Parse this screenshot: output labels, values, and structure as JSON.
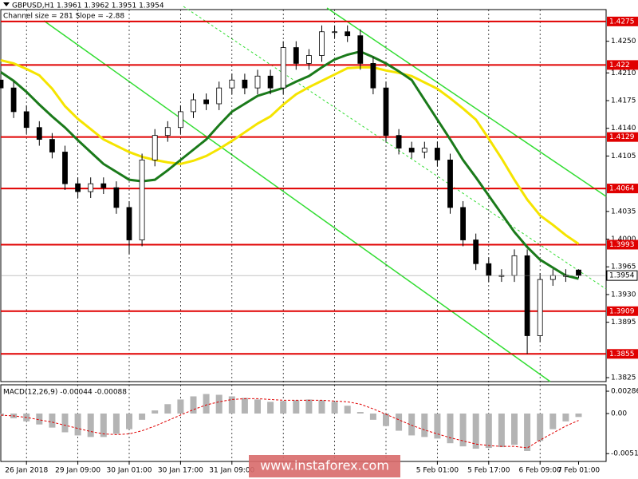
{
  "chart_data": [
    {
      "type": "candlestick",
      "title": "GBPUSD,H1  1.3961 1.3962 1.3951 1.3954",
      "subtitle": "Channel size = 281 Slope = -2.88",
      "watermark": "www.instaforex.com",
      "categories": [
        null,
        null,
        "26 Jan 2018",
        null,
        null,
        null,
        "29 Jan 09:00",
        null,
        null,
        null,
        "30 Jan 01:00",
        null,
        null,
        null,
        "30 Jan 17:00",
        null,
        null,
        null,
        "31 Jan 09:00",
        null,
        null,
        null,
        null,
        null,
        null,
        null,
        null,
        null,
        null,
        null,
        null,
        null,
        null,
        null,
        "5 Feb 01:00",
        null,
        null,
        null,
        "5 Feb 17:00",
        null,
        null,
        null,
        "6 Feb 09:00",
        null,
        null,
        "7 Feb 01:00"
      ],
      "open": [
        1.4201,
        1.4191,
        1.4161,
        1.4141,
        1.4126,
        1.411,
        1.407,
        1.406,
        1.407,
        1.4065,
        1.404,
        1.3999,
        1.41,
        1.4131,
        1.4141,
        1.4161,
        1.4176,
        1.4171,
        1.4191,
        1.4201,
        1.4191,
        1.4206,
        1.4191,
        1.4242,
        1.4222,
        1.4232,
        1.4262,
        1.4262,
        1.4257,
        1.4222,
        1.4191,
        1.4131,
        1.4115,
        1.411,
        1.4115,
        1.41,
        1.404,
        1.3999,
        1.3969,
        1.3954,
        1.3954,
        1.3979,
        1.3878,
        1.3949,
        1.3954,
        1.3961
      ],
      "high": [
        1.4209,
        1.4199,
        1.4169,
        1.4149,
        1.4134,
        1.4118,
        1.4078,
        1.4078,
        1.4078,
        1.4073,
        1.4048,
        1.4108,
        1.4139,
        1.4149,
        1.4169,
        1.4184,
        1.4184,
        1.4199,
        1.4209,
        1.4209,
        1.4214,
        1.4214,
        1.425,
        1.425,
        1.424,
        1.427,
        1.427,
        1.427,
        1.4265,
        1.423,
        1.4199,
        1.4139,
        1.4123,
        1.4123,
        1.4123,
        1.4108,
        1.4048,
        1.4007,
        1.3977,
        1.3962,
        1.3987,
        1.3987,
        1.3957,
        1.3962,
        1.3962,
        1.3962
      ],
      "low": [
        1.4183,
        1.4153,
        1.4133,
        1.4118,
        1.4102,
        1.4062,
        1.4052,
        1.4052,
        1.4057,
        1.4032,
        1.3981,
        1.3991,
        1.4092,
        1.4123,
        1.4133,
        1.4153,
        1.4163,
        1.4163,
        1.4183,
        1.4183,
        1.4183,
        1.4183,
        1.4183,
        1.4214,
        1.4214,
        1.4224,
        1.4254,
        1.4249,
        1.4214,
        1.4183,
        1.4123,
        1.4107,
        1.4102,
        1.4102,
        1.4092,
        1.4032,
        1.3991,
        1.3961,
        1.3946,
        1.3946,
        1.3946,
        1.3855,
        1.387,
        1.3941,
        1.3946,
        1.3951
      ],
      "close": [
        1.4191,
        1.4161,
        1.4141,
        1.4126,
        1.411,
        1.407,
        1.406,
        1.407,
        1.4065,
        1.404,
        1.3999,
        1.41,
        1.4131,
        1.4141,
        1.4161,
        1.4176,
        1.4171,
        1.4191,
        1.4201,
        1.4191,
        1.4206,
        1.4191,
        1.4242,
        1.4222,
        1.4232,
        1.4262,
        1.4262,
        1.4257,
        1.4222,
        1.4191,
        1.4131,
        1.4115,
        1.411,
        1.4115,
        1.41,
        1.404,
        1.3999,
        1.3969,
        1.3954,
        1.3954,
        1.3979,
        1.3878,
        1.3949,
        1.3954,
        1.3954,
        1.3954
      ],
      "color": "#000000",
      "series": [
        {
          "color": "#f5e400",
          "values": [
            1.4226,
            1.4222,
            1.4215,
            1.4207,
            1.419,
            1.4168,
            1.4152,
            1.4139,
            1.4126,
            1.4118,
            1.411,
            1.4104,
            1.41,
            1.4097,
            1.4095,
            1.4099,
            1.4105,
            1.4114,
            1.4124,
            1.4135,
            1.4146,
            1.4155,
            1.417,
            1.4183,
            1.4192,
            1.42,
            1.4208,
            1.4216,
            1.4217,
            1.4217,
            1.4213,
            1.421,
            1.4206,
            1.4198,
            1.419,
            1.4178,
            1.4165,
            1.4151,
            1.4127,
            1.4102,
            1.4075,
            1.405,
            1.403,
            1.4018,
            1.4005,
            1.3994
          ]
        },
        {
          "color": "#1a7a1a",
          "values": [
            1.4211,
            1.42,
            1.4186,
            1.417,
            1.4155,
            1.4141,
            1.4125,
            1.411,
            1.4095,
            1.4085,
            1.4075,
            1.4073,
            1.4075,
            1.4087,
            1.41,
            1.4113,
            1.4126,
            1.4144,
            1.4161,
            1.4171,
            1.4181,
            1.4186,
            1.4191,
            1.4199,
            1.4206,
            1.4217,
            1.4227,
            1.4233,
            1.4237,
            1.423,
            1.4222,
            1.4212,
            1.4201,
            1.4176,
            1.4151,
            1.4126,
            1.41,
            1.4078,
            1.4055,
            1.4032,
            1.4009,
            1.399,
            1.3974,
            1.3964,
            1.3954,
            1.395
          ]
        }
      ],
      "levels": [
        1.4275,
        1.422,
        1.4129,
        1.4064,
        1.3993,
        1.3909,
        1.3855
      ],
      "level_color": "#e00000",
      "current_price": 1.3954,
      "ylim": [
        1.382,
        1.429
      ],
      "yticks": [
        {
          "value": 1.425,
          "label": "1.4250"
        },
        {
          "value": 1.421,
          "label": "1.4210"
        },
        1.4175,
        {
          "value": 1.414,
          "label": "1.4140"
        },
        1.4105,
        1.4035,
        {
          "value": 1.4,
          "label": "1.4000"
        },
        1.3965,
        {
          "value": 1.393,
          "label": "1.3930"
        },
        1.3895,
        1.3825
      ]
    },
    {
      "type": "bar",
      "title": "MACD(12,26,9) -0.00044 -0.00088",
      "values": [
        -0.0003,
        -0.0006,
        -0.001,
        -0.0014,
        -0.0018,
        -0.0024,
        -0.0028,
        -0.003,
        -0.003,
        -0.0026,
        -0.002,
        -0.0008,
        0.0004,
        0.0012,
        0.0018,
        0.0022,
        0.0025,
        0.0024,
        0.0022,
        0.002,
        0.0018,
        0.0015,
        0.0016,
        0.0017,
        0.0018,
        0.0017,
        0.0015,
        0.001,
        0.0002,
        -0.0008,
        -0.0016,
        -0.0022,
        -0.0028,
        -0.003,
        -0.0032,
        -0.0038,
        -0.0042,
        -0.0045,
        -0.0044,
        -0.0043,
        -0.004,
        -0.0048,
        -0.0035,
        -0.002,
        -0.001,
        -0.00044
      ],
      "color": "#b4b4b4",
      "signal": {
        "color": "#e00000",
        "values": [
          -0.0002,
          -0.0003,
          -0.0005,
          -0.0008,
          -0.0011,
          -0.0015,
          -0.0019,
          -0.0023,
          -0.0026,
          -0.0027,
          -0.0026,
          -0.0022,
          -0.0016,
          -0.0009,
          -0.0002,
          0.0005,
          0.0011,
          0.0015,
          0.0018,
          0.0019,
          0.0019,
          0.0018,
          0.0017,
          0.0017,
          0.0017,
          0.0017,
          0.0016,
          0.0015,
          0.0012,
          0.0006,
          -0.0001,
          -0.0008,
          -0.0015,
          -0.0021,
          -0.0026,
          -0.0031,
          -0.0035,
          -0.0039,
          -0.0041,
          -0.0042,
          -0.0042,
          -0.0044,
          -0.0034,
          -0.0025,
          -0.0016,
          -0.00088
        ]
      },
      "ylim": [
        -0.00613,
        0.00368
      ],
      "yticks": [
        0.00286,
        {
          "value": 0,
          "label": "0.00"
        },
        -0.00513
      ]
    }
  ]
}
